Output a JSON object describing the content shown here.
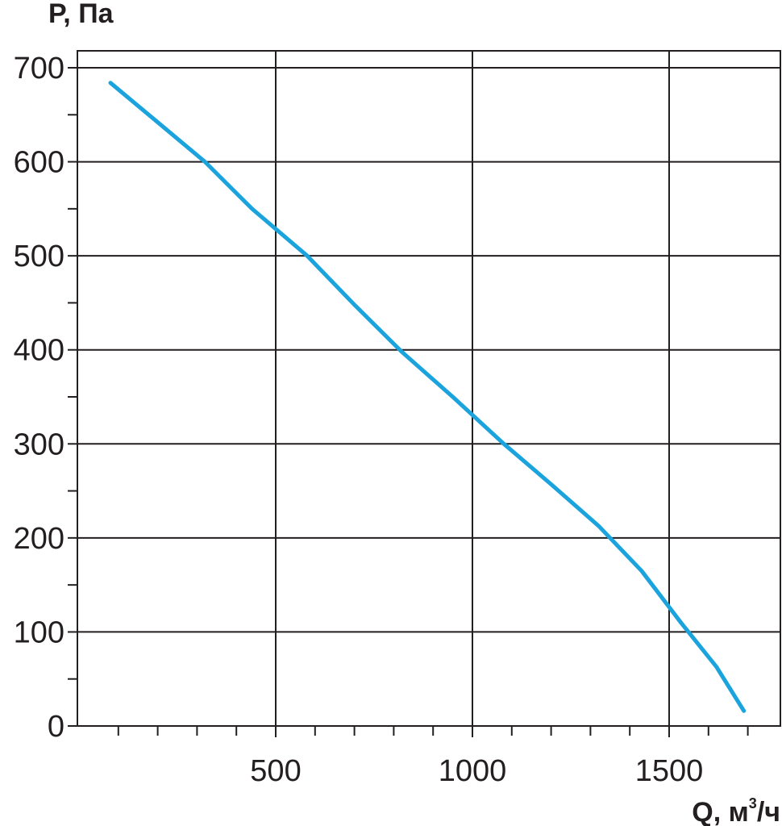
{
  "chart_data": {
    "type": "line",
    "title": "",
    "ylabel": "P, Па",
    "xlabel_main": "Q, м",
    "xlabel_sup": "3",
    "xlabel_tail": "/ч",
    "xlim": [
      -100,
      1450
    ],
    "ylim": [
      0,
      700
    ],
    "grid": true,
    "x_ticks": [
      500,
      1000,
      1500
    ],
    "y_ticks": [
      0,
      100,
      200,
      300,
      400,
      500,
      600,
      700
    ],
    "x_tick_labels": [
      "500",
      "1000",
      "1500"
    ],
    "y_tick_labels": [
      "0",
      "100",
      "200",
      "300",
      "400",
      "500",
      "600",
      "700"
    ],
    "line_color": "#1aa3dc",
    "series": [
      {
        "x": [
          80,
          200,
          320,
          440,
          580,
          700,
          820,
          950,
          1080,
          1200,
          1320,
          1430,
          1530,
          1620,
          1690
        ],
        "y": [
          684,
          642,
          600,
          550,
          500,
          448,
          398,
          350,
          300,
          257,
          213,
          165,
          110,
          63,
          16
        ]
      }
    ]
  }
}
